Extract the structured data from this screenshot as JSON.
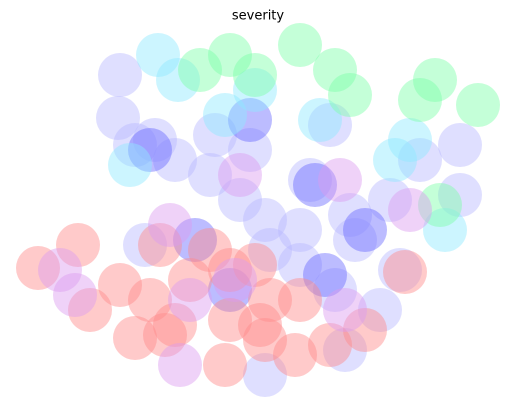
{
  "chart_data": {
    "type": "scatter",
    "title": "severity",
    "xlim": [
      15,
      500
    ],
    "ylim": [
      0,
      372
    ],
    "marker_size": 22,
    "opacity": 0.45,
    "series": [
      {
        "color": "#b8b8ff",
        "x": [
          120,
          118,
          155,
          135,
          215,
          210,
          240,
          265,
          300,
          350,
          390,
          460,
          460,
          145,
          300,
          335,
          380,
          345,
          265,
          310,
          250,
          175,
          330,
          420,
          270,
          355,
          400
        ],
        "y": [
          325,
          282,
          260,
          255,
          265,
          225,
          200,
          180,
          170,
          185,
          200,
          255,
          205,
          155,
          135,
          110,
          90,
          50,
          25,
          220,
          250,
          240,
          275,
          240,
          150,
          160,
          130
        ]
      },
      {
        "color": "#6a6aff",
        "x": [
          150,
          250,
          315,
          325,
          230,
          195,
          365
        ],
        "y": [
          250,
          280,
          215,
          125,
          110,
          160,
          170
        ]
      },
      {
        "color": "#8ee8ff",
        "x": [
          158,
          178,
          130,
          255,
          320,
          395,
          445,
          225,
          410
        ],
        "y": [
          345,
          320,
          235,
          310,
          280,
          240,
          170,
          285,
          260
        ]
      },
      {
        "color": "#7dffa8",
        "x": [
          230,
          300,
          335,
          350,
          435,
          478,
          420,
          440,
          200,
          255
        ],
        "y": [
          345,
          355,
          330,
          305,
          320,
          295,
          300,
          195,
          330,
          325
        ]
      },
      {
        "color": "#ff8a8a",
        "x": [
          38,
          78,
          90,
          120,
          160,
          135,
          165,
          175,
          210,
          230,
          255,
          260,
          295,
          265,
          300,
          365,
          405,
          190,
          225,
          150,
          230,
          330,
          270
        ],
        "y": [
          132,
          155,
          90,
          115,
          155,
          62,
          65,
          75,
          150,
          80,
          135,
          75,
          45,
          60,
          100,
          70,
          128,
          120,
          35,
          100,
          130,
          55,
          100
        ]
      },
      {
        "color": "#dc9cf0",
        "x": [
          60,
          75,
          170,
          240,
          235,
          180,
          190,
          410,
          345,
          340
        ],
        "y": [
          130,
          105,
          175,
          225,
          120,
          35,
          100,
          190,
          90,
          220
        ]
      }
    ]
  }
}
